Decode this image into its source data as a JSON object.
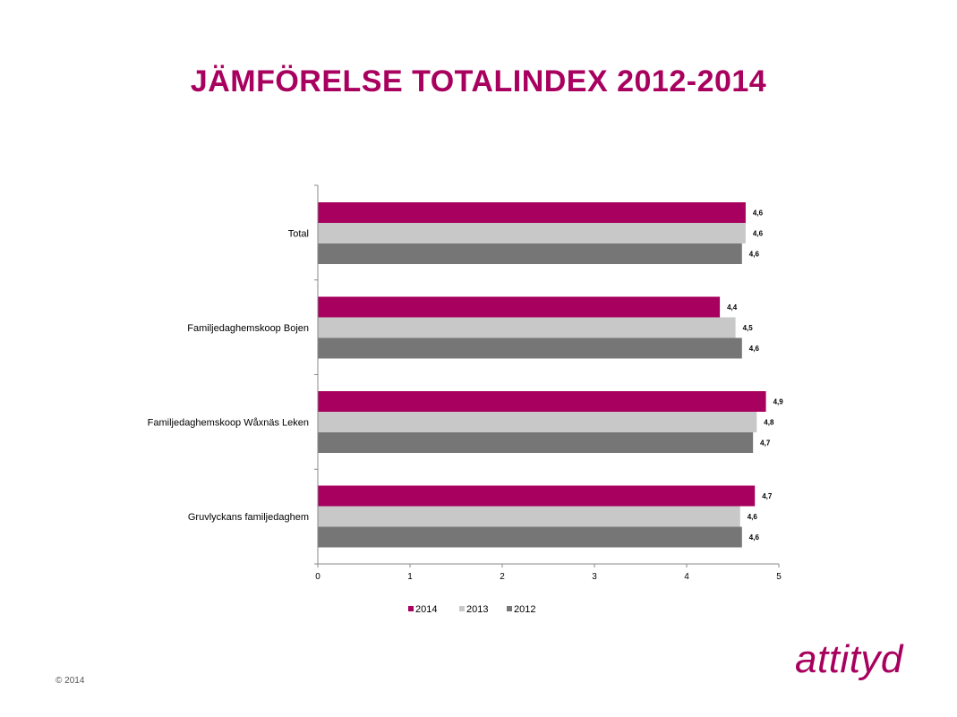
{
  "header": {
    "title": "JÄMFÖRELSE TOTALINDEX 2012-2014"
  },
  "footer": {
    "copyright": "© 2014",
    "logo_text": "attityd"
  },
  "chart_data": {
    "type": "bar",
    "orientation": "horizontal",
    "title": "",
    "xlabel": "",
    "ylabel": "",
    "categories": [
      "Total",
      "Familjedaghemskoop Bojen",
      "Familjedaghemskoop Wåxnäs Leken",
      "Gruvlyckans familjedaghem"
    ],
    "series": [
      {
        "name": "2014",
        "color": "#a8005e",
        "values": [
          4.64,
          4.36,
          4.86,
          4.74
        ],
        "labels": [
          "4,6",
          "4,4",
          "4,9",
          "4,7"
        ]
      },
      {
        "name": "2013",
        "color": "#c8c8c8",
        "values": [
          4.64,
          4.53,
          4.76,
          4.58
        ],
        "labels": [
          "4,6",
          "4,5",
          "4,8",
          "4,6"
        ]
      },
      {
        "name": "2012",
        "color": "#767676",
        "values": [
          4.6,
          4.6,
          4.72,
          4.6
        ],
        "labels": [
          "4,6",
          "4,6",
          "4,7",
          "4,6"
        ]
      }
    ],
    "xlim": [
      0,
      5
    ],
    "xticks": [
      0,
      1,
      2,
      3,
      4,
      5
    ],
    "grid": false,
    "legend": "bottom"
  }
}
